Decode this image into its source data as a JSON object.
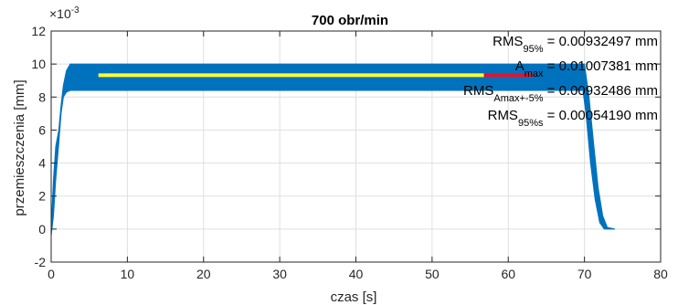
{
  "chart_data": {
    "type": "line",
    "title": "700 obr/min",
    "xlabel": "czas [s]",
    "ylabel": "przemieszczenia [mm]",
    "y_exponent_label": "×10",
    "y_exponent_power": "-3",
    "xlim": [
      0,
      80
    ],
    "ylim": [
      -2,
      12
    ],
    "x_ticks": [
      0,
      10,
      20,
      30,
      40,
      50,
      60,
      70,
      80
    ],
    "y_ticks": [
      -2,
      0,
      2,
      4,
      6,
      8,
      10,
      12
    ],
    "grid": true,
    "colors": {
      "signal": "#0072BD",
      "rms95": "#FFFF33",
      "rms_amax": "#E8112D",
      "axis": "#262626",
      "grid": "#dfdfdf"
    },
    "signal_upper": [
      [
        0,
        0
      ],
      [
        0.3,
        3.0
      ],
      [
        0.6,
        5.0
      ],
      [
        1.0,
        6.0
      ],
      [
        1.3,
        7.5
      ],
      [
        1.6,
        8.7
      ],
      [
        2.0,
        9.6
      ],
      [
        2.5,
        10.0
      ],
      [
        70.0,
        10.0
      ],
      [
        70.6,
        8.0
      ],
      [
        71.2,
        5.2
      ],
      [
        71.8,
        2.5
      ],
      [
        72.4,
        0.8
      ],
      [
        73.0,
        0.1
      ],
      [
        74.0,
        0.0
      ]
    ],
    "signal_lower": [
      [
        0,
        -0.4
      ],
      [
        0.3,
        0.8
      ],
      [
        0.6,
        3.0
      ],
      [
        1.0,
        5.2
      ],
      [
        1.3,
        7.0
      ],
      [
        1.6,
        8.0
      ],
      [
        2.0,
        8.3
      ],
      [
        2.5,
        8.4
      ],
      [
        69.8,
        8.4
      ],
      [
        70.2,
        7.0
      ],
      [
        70.8,
        4.0
      ],
      [
        71.4,
        1.8
      ],
      [
        72.0,
        0.4
      ],
      [
        72.6,
        0.0
      ],
      [
        74.0,
        0.0
      ]
    ],
    "rms95_line": {
      "x": [
        6.2,
        56.8
      ],
      "y": 9.32497
    },
    "rms_amax_line": {
      "x": [
        56.8,
        63.2
      ],
      "y": 9.32486
    },
    "annotations": [
      {
        "label": "RMS",
        "sub": "95%",
        "value": " = 0.00932497 mm"
      },
      {
        "label": "A",
        "sub": "max",
        "value": " = 0.01007381 mm"
      },
      {
        "label": "RMS",
        "sub": "Amax+-5%",
        "value": " = 0.00932486 mm"
      },
      {
        "label": "RMS",
        "sub": "95%s",
        "value": " = 0.00054190 mm"
      }
    ]
  }
}
